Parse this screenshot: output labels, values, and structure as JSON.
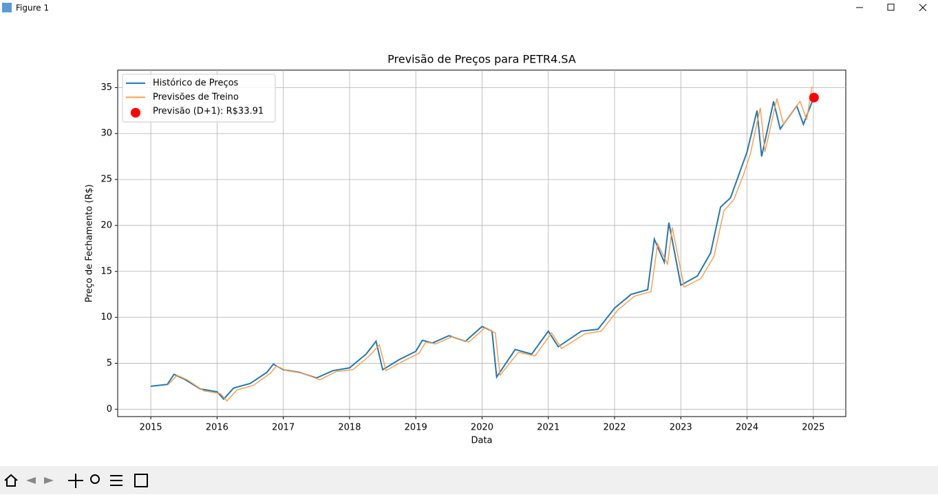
{
  "window": {
    "title": "Figure 1"
  },
  "chart_data": {
    "type": "line",
    "title": "Previsão de Preços para PETR4.SA",
    "xlabel": "Data",
    "ylabel": "Preço de Fechamento (R$)",
    "xlim": [
      2014.5,
      2025.49
    ],
    "xticks": [
      2015,
      2016,
      2017,
      2018,
      2019,
      2020,
      2021,
      2022,
      2023,
      2024,
      2025
    ],
    "ylim": [
      -0.8,
      36.9
    ],
    "yticks": [
      0,
      5,
      10,
      15,
      20,
      25,
      30,
      35
    ],
    "grid": true,
    "legend": "upper left",
    "series": [
      {
        "name": "Histórico de Preços",
        "type": "line",
        "color": "#1f77b4",
        "x": [
          2015.0,
          2015.25,
          2015.35,
          2015.5,
          2015.75,
          2016.0,
          2016.1,
          2016.25,
          2016.5,
          2016.75,
          2016.85,
          2017.0,
          2017.25,
          2017.5,
          2017.75,
          2018.0,
          2018.25,
          2018.4,
          2018.5,
          2018.75,
          2019.0,
          2019.1,
          2019.25,
          2019.5,
          2019.75,
          2020.0,
          2020.15,
          2020.22,
          2020.5,
          2020.75,
          2021.0,
          2021.15,
          2021.5,
          2021.75,
          2022.0,
          2022.25,
          2022.5,
          2022.6,
          2022.75,
          2022.82,
          2023.0,
          2023.25,
          2023.45,
          2023.6,
          2023.75,
          2023.9,
          2024.0,
          2024.15,
          2024.22,
          2024.4,
          2024.5,
          2024.75,
          2024.85,
          2025.0
        ],
        "values": [
          2.5,
          2.7,
          3.8,
          3.3,
          2.2,
          1.9,
          1.1,
          2.3,
          2.8,
          4.0,
          4.9,
          4.3,
          4.0,
          3.4,
          4.2,
          4.5,
          6.0,
          7.4,
          4.3,
          5.4,
          6.3,
          7.5,
          7.2,
          8.0,
          7.4,
          9.0,
          8.5,
          3.5,
          6.5,
          6.0,
          8.5,
          6.8,
          8.5,
          8.7,
          11.0,
          12.5,
          13.0,
          18.5,
          16.0,
          20.3,
          13.5,
          14.5,
          17.0,
          22.0,
          23.0,
          26.0,
          28.0,
          32.5,
          27.5,
          33.5,
          30.5,
          33.0,
          31.0,
          33.8
        ]
      },
      {
        "name": "Previsões de Treino",
        "type": "line",
        "color": "#ff9e4a",
        "x": [
          2015.25,
          2015.4,
          2015.55,
          2015.8,
          2016.05,
          2016.15,
          2016.3,
          2016.55,
          2016.8,
          2016.9,
          2017.05,
          2017.3,
          2017.55,
          2017.8,
          2018.05,
          2018.3,
          2018.45,
          2018.55,
          2018.8,
          2019.05,
          2019.15,
          2019.3,
          2019.55,
          2019.8,
          2020.05,
          2020.2,
          2020.27,
          2020.55,
          2020.8,
          2021.05,
          2021.2,
          2021.55,
          2021.8,
          2022.05,
          2022.3,
          2022.55,
          2022.65,
          2022.8,
          2022.87,
          2023.05,
          2023.3,
          2023.5,
          2023.65,
          2023.8,
          2023.95,
          2024.05,
          2024.2,
          2024.27,
          2024.45,
          2024.55,
          2024.8,
          2024.9,
          2024.98
        ],
        "values": [
          2.6,
          3.7,
          3.2,
          2.0,
          1.7,
          0.9,
          2.1,
          2.6,
          3.9,
          4.7,
          4.2,
          3.9,
          3.2,
          4.1,
          4.3,
          5.8,
          7.0,
          4.2,
          5.2,
          6.1,
          7.3,
          7.1,
          7.9,
          7.3,
          8.9,
          8.3,
          3.7,
          6.2,
          5.8,
          8.3,
          6.6,
          8.2,
          8.5,
          10.8,
          12.3,
          12.8,
          18.0,
          15.8,
          19.8,
          13.3,
          14.2,
          16.6,
          21.6,
          22.8,
          25.6,
          27.8,
          32.8,
          28.0,
          33.8,
          31.0,
          33.5,
          31.5,
          35.1
        ]
      },
      {
        "name": "Previsão (D+1): R$33.91",
        "type": "scatter",
        "color": "#ff0000",
        "x": [
          2025.01
        ],
        "values": [
          33.91
        ]
      }
    ]
  }
}
